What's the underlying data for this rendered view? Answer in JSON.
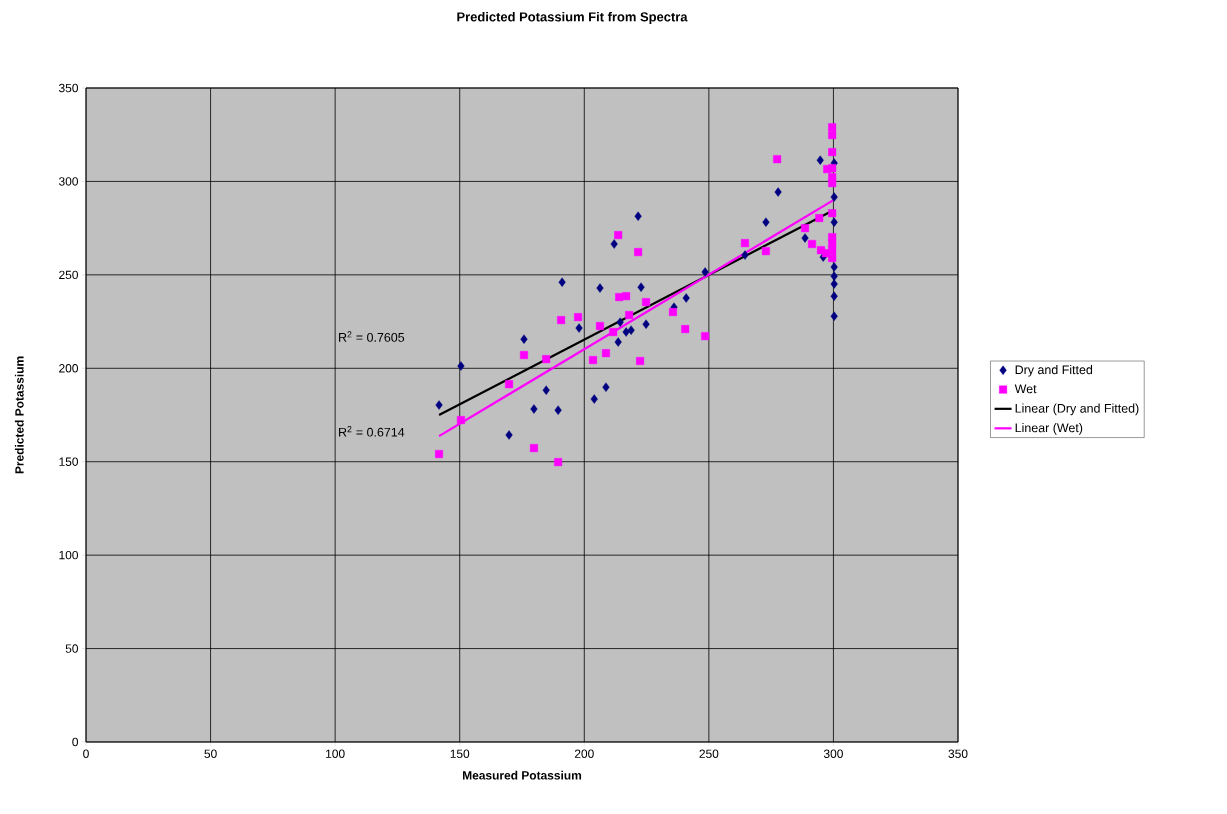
{
  "chart_data": {
    "type": "scatter",
    "title": "Predicted Potassium Fit from Spectra",
    "xlabel": "Measured Potassium",
    "ylabel": "Predicted Potassium",
    "xlim": [
      0,
      350
    ],
    "ylim": [
      0,
      350
    ],
    "xticks": [
      0,
      50,
      100,
      150,
      200,
      250,
      300,
      350
    ],
    "yticks": [
      0,
      50,
      100,
      150,
      200,
      250,
      300,
      350
    ],
    "grid": true,
    "legend": "right",
    "annotations": [
      "R$^{2}$ = 0.7605",
      "R$^{2}$ = 0.6714"
    ],
    "series": [
      {
        "name": "Dry and Fitted",
        "type": "scatter",
        "marker": "diamond",
        "color": "#000080",
        "x": [
          141.7,
          150.5,
          169.8,
          175.8,
          179.8,
          184.7,
          189.5,
          191.1,
          197.9,
          204,
          206.3,
          208.7,
          212,
          213.6,
          214.4,
          216.8,
          218.8,
          221.6,
          222.8,
          224.8,
          236,
          240.9,
          248.5,
          264.5,
          272.9,
          277.8,
          288.6,
          294.7,
          295.9,
          300.3,
          300.3,
          300.3,
          300.3,
          300.3,
          300.3,
          300.3,
          300.3
        ],
        "values": [
          180.3,
          201.2,
          164.3,
          215.6,
          178.2,
          188.3,
          177.6,
          246.1,
          221.5,
          183.5,
          242.9,
          189.9,
          266.5,
          214,
          224.7,
          219.4,
          220.4,
          281.4,
          243.4,
          223.6,
          232.7,
          237.6,
          251.5,
          260.6,
          278.2,
          294.3,
          269.7,
          311.4,
          259.5,
          309.8,
          291.6,
          278.2,
          254.2,
          249.3,
          245.1,
          238.6,
          227.9
        ]
      },
      {
        "name": "Wet",
        "type": "scatter",
        "marker": "square",
        "color": "#ff00ff",
        "x": [
          141.7,
          150.5,
          169.8,
          175.8,
          179.8,
          184.7,
          189.5,
          190.7,
          197.5,
          203.5,
          206.3,
          208.7,
          211.6,
          213.6,
          214,
          216.8,
          218,
          221.6,
          222.4,
          224.8,
          235.6,
          240.5,
          248.5,
          264.5,
          272.9,
          277.4,
          288.6,
          291.4,
          294.3,
          295,
          297,
          297.5,
          299.5,
          299.5,
          299.5,
          299.5,
          299.5,
          299.5,
          299.5,
          299.5,
          299.5,
          299.5,
          299.5
        ],
        "values": [
          154.1,
          172.3,
          191.5,
          207.1,
          157.3,
          204.9,
          149.8,
          225.8,
          227.4,
          204.4,
          222.6,
          208.1,
          219.4,
          271.3,
          238.1,
          238.6,
          228.5,
          262.2,
          203.9,
          235.4,
          230.1,
          221,
          217.2,
          267,
          262.7,
          311.9,
          275,
          266.5,
          280.4,
          263.2,
          261.6,
          306.6,
          329,
          324.8,
          315.7,
          307.1,
          302.3,
          299.1,
          283,
          270.2,
          267,
          263.2,
          259
        ]
      },
      {
        "name": "Linear (Dry and Fitted)",
        "type": "line",
        "marker": "none",
        "color": "#000000",
        "x": [
          141.7,
          300
        ],
        "values": [
          175,
          284.6
        ]
      },
      {
        "name": "Linear (Wet)",
        "type": "line",
        "marker": "none",
        "color": "#ff00ff",
        "x": [
          141.7,
          300
        ],
        "values": [
          163.7,
          290
        ]
      }
    ]
  }
}
